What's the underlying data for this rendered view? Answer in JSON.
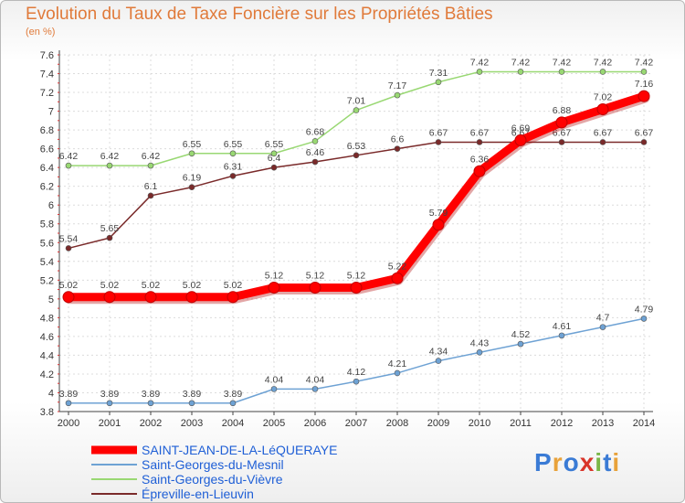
{
  "chart_data": {
    "type": "line",
    "title": "Evolution du Taux de Taxe Foncière sur les Propriétés Bâties",
    "ylabel": "(en %)",
    "xlabel": "",
    "ylim": [
      3.8,
      7.6
    ],
    "yticks": [
      "7.6",
      "7.4",
      "7.2",
      "7",
      "6.8",
      "6.6",
      "6.4",
      "6.2",
      "6",
      "5.8",
      "5.6",
      "5.4",
      "5.2",
      "5",
      "4.8",
      "4.6",
      "4.4",
      "4.2",
      "4",
      "3.8"
    ],
    "categories": [
      "2000",
      "2001",
      "2002",
      "2003",
      "2004",
      "2005",
      "2006",
      "2007",
      "2008",
      "2009",
      "2010",
      "2011",
      "2012",
      "2013",
      "2014"
    ],
    "grid": true,
    "legend_position": "bottom-left",
    "series": [
      {
        "name": "SAINT-JEAN-DE-LA-LéQUERAYE",
        "color": "#ff0000",
        "values": [
          5.02,
          5.02,
          5.02,
          5.02,
          5.02,
          5.12,
          5.12,
          5.12,
          5.22,
          5.79,
          6.36,
          6.69,
          6.88,
          7.02,
          7.16
        ],
        "labels": [
          "5.02",
          "5.02",
          "5.02",
          "5.02",
          "5.02",
          "5.12",
          "5.12",
          "5.12",
          "5.22",
          "5.79",
          "6.36",
          "6.69",
          "6.88",
          "7.02",
          "7.16"
        ]
      },
      {
        "name": "Saint-Georges-du-Mesnil",
        "color": "#6ea2d4",
        "values": [
          3.89,
          3.89,
          3.89,
          3.89,
          3.89,
          4.04,
          4.04,
          4.12,
          4.21,
          4.34,
          4.43,
          4.52,
          4.61,
          4.7,
          4.79
        ],
        "labels": [
          "3.89",
          "3.89",
          "3.89",
          "3.89",
          "3.89",
          "4.04",
          "4.04",
          "4.12",
          "4.21",
          "4.34",
          "4.43",
          "4.52",
          "4.61",
          "4.7",
          "4.79"
        ]
      },
      {
        "name": "Saint-Georges-du-Vièvre",
        "color": "#99d873",
        "values": [
          6.42,
          6.42,
          6.42,
          6.55,
          6.55,
          6.55,
          6.68,
          7.01,
          7.17,
          7.31,
          7.42,
          7.42,
          7.42,
          7.42,
          7.42
        ],
        "labels": [
          "6.42",
          "6.42",
          "6.42",
          "6.55",
          "6.55",
          "6.55",
          "6.68",
          "7.01",
          "7.17",
          "7.31",
          "7.42",
          "7.42",
          "7.42",
          "7.42",
          "7.42"
        ]
      },
      {
        "name": "Épreville-en-Lieuvin",
        "color": "#7a2a2a",
        "values": [
          5.54,
          5.65,
          6.1,
          6.19,
          6.31,
          6.4,
          6.46,
          6.53,
          6.6,
          6.67,
          6.67,
          6.67,
          6.67,
          6.67,
          6.67
        ],
        "labels": [
          "5.54",
          "5.65",
          "6.1",
          "6.19",
          "6.31",
          "6.4",
          "6.46",
          "6.53",
          "6.6",
          "6.67",
          "6.67",
          "6.67",
          "6.67",
          "6.67",
          "6.67"
        ]
      }
    ]
  },
  "logo": {
    "letters": [
      "P",
      "r",
      "o",
      "x",
      "i",
      "t",
      "i"
    ],
    "colors": [
      "#3a7bd5",
      "#e8a23a",
      "#3a7bd5",
      "#d9352a",
      "#7ab648",
      "#3a7bd5",
      "#e8a23a"
    ]
  }
}
